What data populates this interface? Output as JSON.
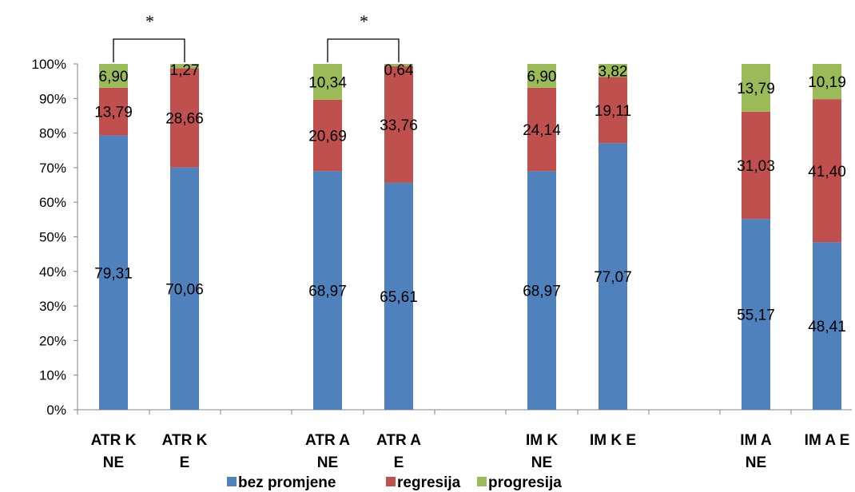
{
  "chart_data": {
    "type": "bar",
    "stacked": true,
    "percent": true,
    "title": "",
    "xlabel": "",
    "ylabel": "",
    "ylim": [
      0,
      100
    ],
    "y_ticks": [
      "0%",
      "10%",
      "20%",
      "30%",
      "40%",
      "50%",
      "60%",
      "70%",
      "80%",
      "90%",
      "100%"
    ],
    "categories": [
      [
        "ATR K",
        "NE"
      ],
      [
        "ATR K",
        "E"
      ],
      [
        "ATR A",
        "NE"
      ],
      [
        "ATR A",
        "E"
      ],
      [
        "IM K",
        "NE"
      ],
      [
        "IM K E"
      ],
      [
        "IM A",
        "NE"
      ],
      [
        "IM A E"
      ]
    ],
    "series": [
      {
        "name": "bez promjene",
        "color": "#4F81BD",
        "values": [
          79.31,
          70.06,
          68.97,
          65.61,
          68.97,
          77.07,
          55.17,
          48.41
        ],
        "labels": [
          "79,31",
          "70,06",
          "68,97",
          "65,61",
          "68,97",
          "77,07",
          "55,17",
          "48,41"
        ]
      },
      {
        "name": "regresija",
        "color": "#C0504D",
        "values": [
          13.79,
          28.66,
          20.69,
          33.76,
          24.14,
          19.11,
          31.03,
          41.4
        ],
        "labels": [
          "13,79",
          "28,66",
          "20,69",
          "33,76",
          "24,14",
          "19,11",
          "31,03",
          "41,40"
        ]
      },
      {
        "name": "progresija",
        "color": "#9BBB59",
        "values": [
          6.9,
          1.27,
          10.34,
          0.64,
          6.9,
          3.82,
          13.79,
          10.19
        ],
        "labels": [
          "6,90",
          "1,27",
          "10,34",
          "0,64",
          "6,90",
          "3,82",
          "13,79",
          "10,19"
        ]
      }
    ],
    "significance": [
      {
        "pair": [
          0,
          1
        ],
        "marker": "*"
      },
      {
        "pair": [
          2,
          3
        ],
        "marker": "*"
      }
    ],
    "legend_position": "bottom",
    "grid": false
  }
}
